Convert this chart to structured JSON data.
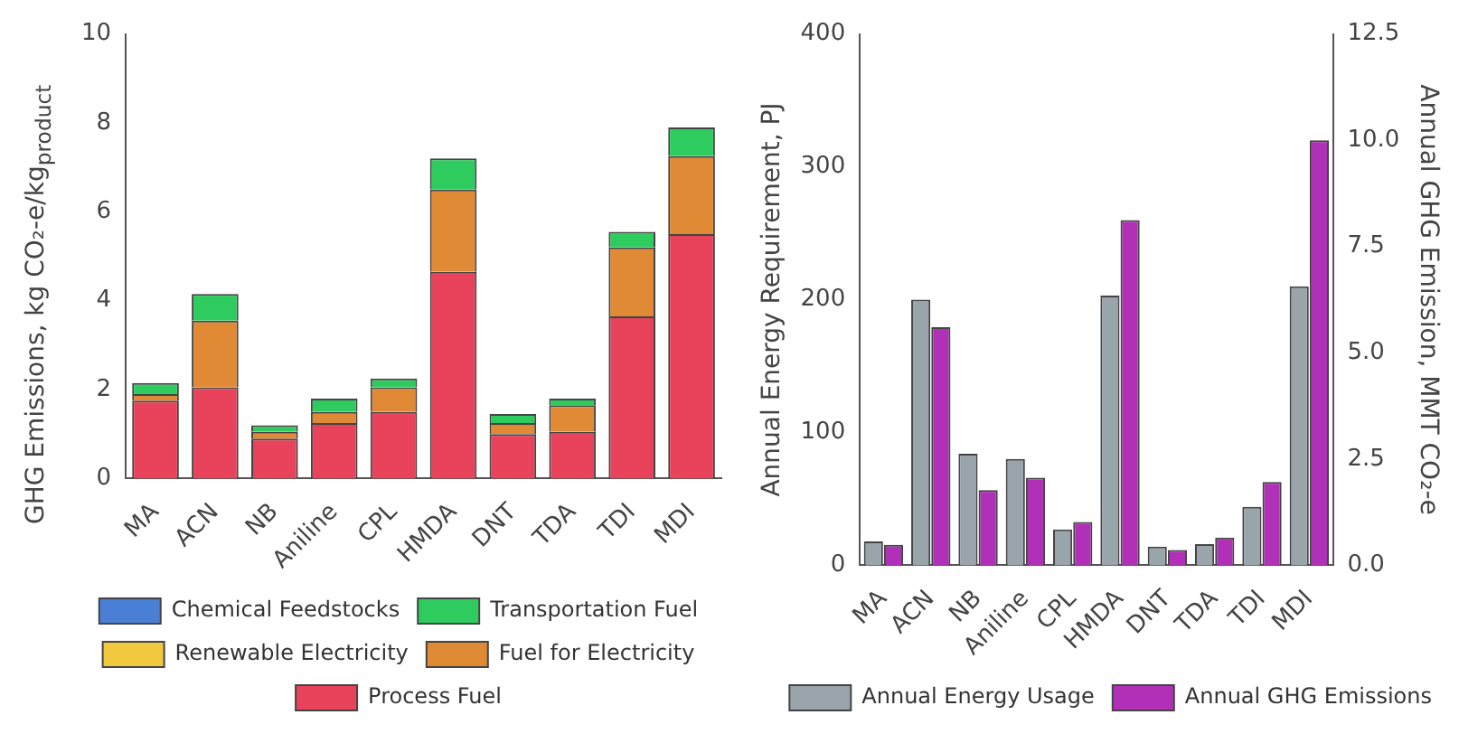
{
  "chart_data": [
    {
      "type": "bar",
      "stacked": true,
      "ylabel": "GHG Emissions, kg CO₂-e/kg$_{product}$",
      "categories": [
        "MA",
        "ACN",
        "NB",
        "Aniline",
        "CPL",
        "HMDA",
        "DNT",
        "TDA",
        "TDI",
        "MDI"
      ],
      "series": [
        {
          "name": "Process Fuel",
          "color": "#e8435a",
          "values": [
            1.75,
            2.05,
            0.9,
            1.25,
            1.5,
            4.65,
            1.0,
            1.05,
            3.65,
            5.5
          ]
        },
        {
          "name": "Fuel for Electricity",
          "color": "#e08a35",
          "values": [
            0.15,
            1.5,
            0.15,
            0.25,
            0.55,
            1.85,
            0.25,
            0.6,
            1.55,
            1.75
          ]
        },
        {
          "name": "Renewable Electricity",
          "color": "#f0c93f",
          "values": [
            0,
            0,
            0,
            0,
            0,
            0,
            0,
            0,
            0,
            0
          ]
        },
        {
          "name": "Transportation Fuel",
          "color": "#2ecc5f",
          "values": [
            0.25,
            0.6,
            0.15,
            0.3,
            0.2,
            0.7,
            0.2,
            0.15,
            0.35,
            0.65
          ]
        },
        {
          "name": "Chemical Feedstocks",
          "color": "#4a7fd6",
          "values": [
            0,
            0,
            0,
            0,
            0,
            0,
            0,
            0,
            0,
            0
          ]
        }
      ],
      "ylim": [
        0,
        10
      ],
      "yticks": [
        0,
        2,
        4,
        6,
        8,
        10
      ],
      "grid": false,
      "legend": "bottom"
    },
    {
      "type": "bar",
      "ylabel": "Annual Energy Requirement, PJ",
      "y2label": "Annual GHG Emission, MMT CO₂-e",
      "categories": [
        "MA",
        "ACN",
        "NB",
        "Aniline",
        "CPL",
        "HMDA",
        "DNT",
        "TDA",
        "TDI",
        "MDI"
      ],
      "series": [
        {
          "name": "Annual Energy Usage",
          "color": "#9aa4ab",
          "values": [
            18,
            200,
            84,
            80,
            27,
            203,
            14,
            16,
            44,
            210
          ]
        },
        {
          "name": "Annual GHG Emissions",
          "color": "#b030b8",
          "axis": "y2",
          "values": [
            0.48,
            5.6,
            1.77,
            2.06,
            1.02,
            8.12,
            0.36,
            0.65,
            1.96,
            10.0
          ]
        }
      ],
      "ylim": [
        0,
        400
      ],
      "yticks": [
        0,
        100,
        200,
        300,
        400
      ],
      "y2lim": [
        0,
        12.5
      ],
      "y2ticks": [
        {
          "value": 0,
          "label": "0.0"
        },
        {
          "value": 2.5,
          "label": "2.5"
        },
        {
          "value": 5,
          "label": "5.0"
        },
        {
          "value": 7.5,
          "label": "7.5"
        },
        {
          "value": 10,
          "label": "10.0"
        },
        {
          "value": 12.5,
          "label": "12.5"
        }
      ],
      "grid": false,
      "legend": "bottom right"
    }
  ]
}
